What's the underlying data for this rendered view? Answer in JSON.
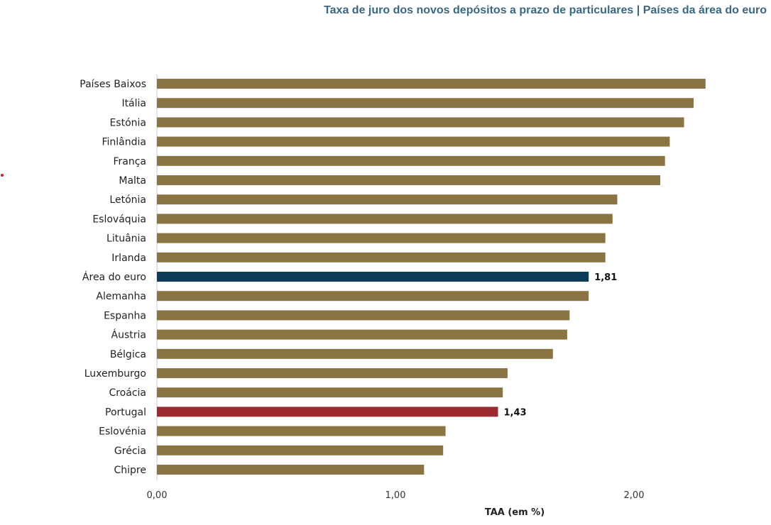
{
  "chart_data": {
    "type": "bar",
    "orientation": "horizontal",
    "title": "Taxa de juro dos novos depósitos a prazo de particulares | Países da área do euro",
    "xlabel": "TAA (em %)",
    "ylabel": "",
    "xlim": [
      0,
      2.5
    ],
    "xticks": [
      "0,00",
      "1,00",
      "2,00"
    ],
    "grid": false,
    "categories": [
      "Países Baixos",
      "Itália",
      "Estónia",
      "Finlândia",
      "França",
      "Malta",
      "Letónia",
      "Eslováquia",
      "Lituânia",
      "Irlanda",
      "Área do euro",
      "Alemanha",
      "Espanha",
      "Áustria",
      "Bélgica",
      "Luxemburgo",
      "Croácia",
      "Portugal",
      "Eslovénia",
      "Grécia",
      "Chipre"
    ],
    "values": [
      2.3,
      2.25,
      2.21,
      2.15,
      2.13,
      2.11,
      1.93,
      1.91,
      1.88,
      1.88,
      1.81,
      1.81,
      1.73,
      1.72,
      1.66,
      1.47,
      1.45,
      1.43,
      1.21,
      1.2,
      1.12
    ],
    "data_labels": {
      "Área do euro": "1,81",
      "Portugal": "1,43"
    },
    "colors": {
      "default": "#8b7443",
      "Área do euro": "#0c3c57",
      "Portugal": "#9b2b31"
    }
  }
}
